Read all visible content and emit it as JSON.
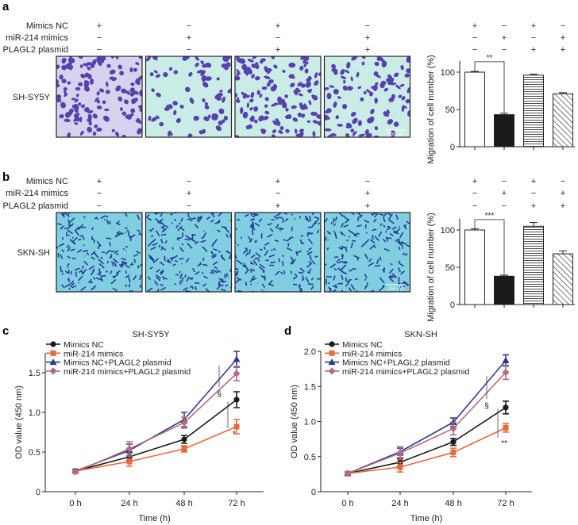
{
  "panels": {
    "a": "a",
    "b": "b",
    "c": "c",
    "d": "d"
  },
  "conditions": {
    "labels": [
      "Mimics NC",
      "miR-214 mimics",
      "PLAGL2 plasmid"
    ],
    "signs": [
      [
        "+",
        "−",
        "+",
        "−"
      ],
      [
        "−",
        "+",
        "−",
        "+"
      ],
      [
        "−",
        "−",
        "+",
        "+"
      ]
    ]
  },
  "micrographs": [
    {
      "cell_line": "SH-SY5Y",
      "scale_bar": "250 µm",
      "bg": "#c9ece6",
      "stain": "#5a3fb0"
    },
    {
      "cell_line": "SKN-SH",
      "scale_bar": "250 µm",
      "bg": "#7fcfe0",
      "stain": "#2a3a9a"
    }
  ],
  "chart_data": [
    {
      "type": "bar",
      "panel": "a",
      "ylabel": "Migration of cell number (%)",
      "ylim": [
        0,
        115
      ],
      "yticks": [
        0,
        50,
        100
      ],
      "categories": [
        "Mimics NC",
        "miR-214 mimics",
        "Mimics NC+PLAGL2 plasmid",
        "miR-214 mimics+PLAGL2 plasmid"
      ],
      "values": [
        100,
        43,
        96,
        71
      ],
      "errors": [
        1,
        2,
        1.5,
        1.5
      ],
      "fills": [
        "white",
        "black",
        "hlines",
        "diag"
      ],
      "significance": {
        "between": [
          0,
          1
        ],
        "label": "**"
      }
    },
    {
      "type": "bar",
      "panel": "b",
      "ylabel": "Migration of cell number (%)",
      "ylim": [
        0,
        115
      ],
      "yticks": [
        0,
        50,
        100
      ],
      "categories": [
        "Mimics NC",
        "miR-214 mimics",
        "Mimics NC+PLAGL2 plasmid",
        "miR-214 mimics+PLAGL2 plasmid"
      ],
      "values": [
        100,
        38,
        105,
        68
      ],
      "errors": [
        1.5,
        1.5,
        5,
        4
      ],
      "fills": [
        "white",
        "black",
        "hlines",
        "diag"
      ],
      "significance": {
        "between": [
          0,
          1
        ],
        "label": "***"
      }
    },
    {
      "type": "line",
      "panel": "c",
      "title": "SH-SY5Y",
      "xlabel": "Time (h)",
      "ylabel": "OD value (450 nm)",
      "x": [
        "0 h",
        "24 h",
        "48 h",
        "72 h"
      ],
      "ylim": [
        0,
        1.75
      ],
      "yticks": [
        "0",
        "0.5",
        "1.0",
        "1.5"
      ],
      "ytick_values": [
        0,
        0.5,
        1.0,
        1.5
      ],
      "legend": "top-left",
      "series": [
        {
          "name": "Mimics NC",
          "color": "#1a1a1a",
          "marker": "circle",
          "values": [
            0.26,
            0.44,
            0.66,
            1.16
          ],
          "errors": [
            0.02,
            0.05,
            0.05,
            0.1
          ]
        },
        {
          "name": "miR-214 mimics",
          "color": "#e8693a",
          "marker": "square",
          "values": [
            0.26,
            0.38,
            0.54,
            0.82
          ],
          "errors": [
            0.02,
            0.06,
            0.04,
            0.09
          ]
        },
        {
          "name": "Mimics NC+PLAGL2 plasmid",
          "color": "#2b3a8f",
          "marker": "triangle",
          "values": [
            0.26,
            0.52,
            0.91,
            1.67
          ],
          "errors": [
            0.02,
            0.08,
            0.09,
            0.1
          ]
        },
        {
          "name": "miR-214 mimics+PLAGL2 plasmid",
          "color": "#b56a7c",
          "marker": "diamond",
          "values": [
            0.25,
            0.54,
            0.87,
            1.49
          ],
          "errors": [
            0.02,
            0.09,
            0.07,
            0.09
          ]
        }
      ],
      "annotations": [
        {
          "label": "§",
          "between": [
            "Mimics NC+PLAGL2 plasmid",
            "miR-214 mimics+PLAGL2 plasmid"
          ]
        },
        {
          "label": "*",
          "between": [
            "Mimics NC",
            "miR-214 mimics"
          ]
        }
      ]
    },
    {
      "type": "line",
      "panel": "d",
      "title": "SKN-SH",
      "xlabel": "Time (h)",
      "ylabel": "OD value (450 nm)",
      "x": [
        "0 h",
        "24 h",
        "48 h",
        "72 h"
      ],
      "ylim": [
        0,
        2.0
      ],
      "yticks": [
        "0",
        "0.5",
        "1.0",
        "1.5",
        "2.0"
      ],
      "ytick_values": [
        0,
        0.5,
        1.0,
        1.5,
        2.0
      ],
      "legend": "top-left",
      "series": [
        {
          "name": "Mimics NC",
          "color": "#1a1a1a",
          "marker": "circle",
          "values": [
            0.26,
            0.42,
            0.71,
            1.2
          ],
          "errors": [
            0.02,
            0.06,
            0.05,
            0.09
          ]
        },
        {
          "name": "miR-214 mimics",
          "color": "#e8693a",
          "marker": "square",
          "values": [
            0.26,
            0.35,
            0.56,
            0.91
          ],
          "errors": [
            0.02,
            0.07,
            0.06,
            0.06
          ]
        },
        {
          "name": "Mimics NC+PLAGL2 plasmid",
          "color": "#2b3a8f",
          "marker": "triangle",
          "values": [
            0.26,
            0.57,
            0.99,
            1.87
          ],
          "errors": [
            0.02,
            0.05,
            0.06,
            0.08
          ]
        },
        {
          "name": "miR-214 mimics+PLAGL2 plasmid",
          "color": "#b56a7c",
          "marker": "diamond",
          "values": [
            0.26,
            0.55,
            0.9,
            1.7
          ],
          "errors": [
            0.02,
            0.09,
            0.09,
            0.1
          ]
        }
      ],
      "annotations": [
        {
          "label": "§",
          "between": [
            "Mimics NC+PLAGL2 plasmid",
            "miR-214 mimics+PLAGL2 plasmid"
          ]
        },
        {
          "label": "**",
          "between": [
            "Mimics NC",
            "miR-214 mimics"
          ]
        }
      ]
    }
  ]
}
